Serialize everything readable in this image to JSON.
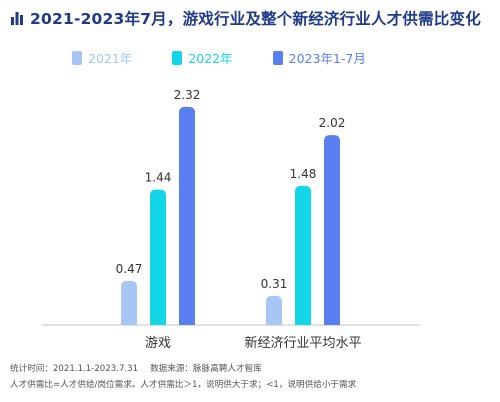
{
  "title": "2021-2023年7月，游戏行业及整个新经济行业人才供需比变化",
  "colors": {
    "title": "#1f3a8a",
    "axis": "#bfc5cc",
    "series": [
      "#a7c6f5",
      "#13d6e6",
      "#5a7ff0"
    ],
    "legend_text": [
      "#a7c6f5",
      "#13d6e6",
      "#5a7ff0"
    ]
  },
  "icons": {
    "title_icon": "bar-chart-icon"
  },
  "chart_data": {
    "type": "bar",
    "title": "2021-2023年7月，游戏行业及整个新经济行业人才供需比变化",
    "categories": [
      "游戏",
      "新经济行业平均水平"
    ],
    "series": [
      {
        "name": "2021年",
        "values": [
          0.47,
          0.31
        ]
      },
      {
        "name": "2022年",
        "values": [
          1.44,
          1.48
        ]
      },
      {
        "name": "2023年1-7月",
        "values": [
          2.32,
          2.02
        ]
      }
    ],
    "data_labels": [
      [
        "0.47",
        "1.44",
        "2.32"
      ],
      [
        "0.31",
        "1.48",
        "2.02"
      ]
    ],
    "ylim": [
      0,
      2.5
    ],
    "grid": false,
    "legend_position": "top-left"
  },
  "footnotes": {
    "line1_left": "统计时间：2021.1.1-2023.7.31",
    "line1_right": "数据来源：脉脉高聘人才智库",
    "line2": "人才供需比=人才供给/岗位需求。人才供需比＞1，说明供大于求；<1，说明供给小于需求"
  }
}
